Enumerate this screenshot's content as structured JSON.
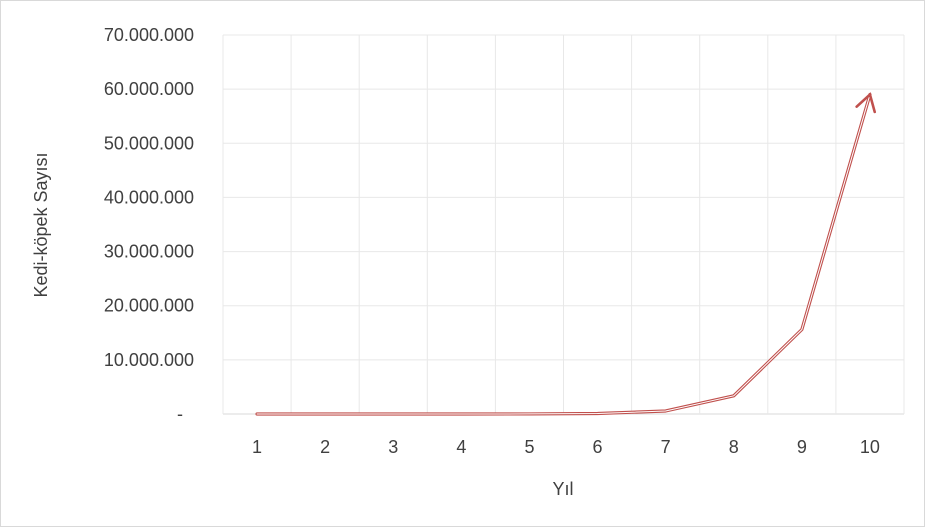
{
  "chart_data": {
    "type": "line",
    "title": "",
    "xlabel": "Yıl",
    "ylabel": "Kedi-köpek Sayısı",
    "x": [
      1,
      2,
      3,
      4,
      5,
      6,
      7,
      8,
      9,
      10
    ],
    "series": [
      {
        "values": [
          12,
          72,
          432,
          2592,
          15552,
          93312,
          559872,
          3359232,
          15600000,
          59000000
        ],
        "color": "#c0504d"
      }
    ],
    "ylim": [
      0,
      70000000
    ],
    "yticks": [
      0,
      10000000,
      20000000,
      30000000,
      40000000,
      50000000,
      60000000,
      70000000
    ],
    "ytick_labels": [
      "-",
      "10.000.000",
      "20.000.000",
      "30.000.000",
      "40.000.000",
      "50.000.000",
      "60.000.000",
      "70.000.000"
    ],
    "xtick_labels": [
      "1",
      "2",
      "3",
      "4",
      "5",
      "6",
      "7",
      "8",
      "9",
      "10"
    ],
    "grid": true,
    "legend": "none",
    "end_marker": "arrow"
  }
}
